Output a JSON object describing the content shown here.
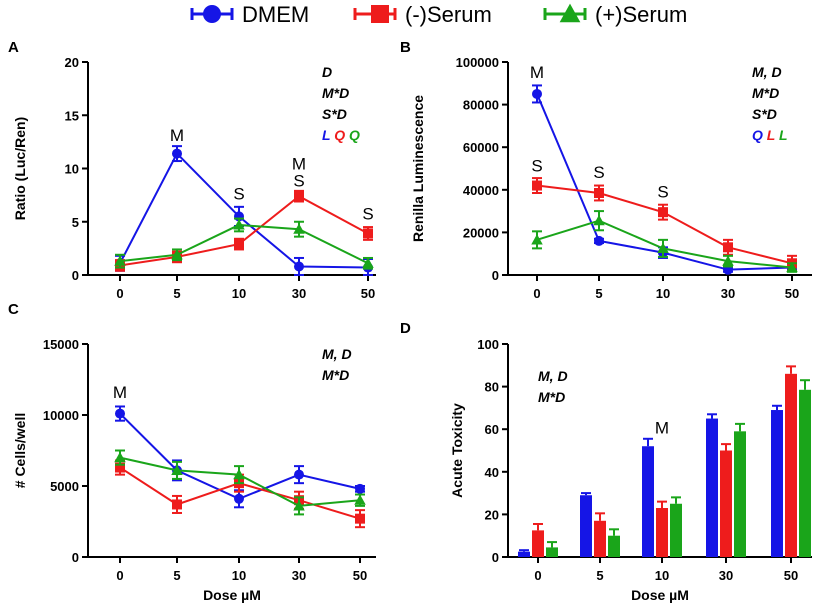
{
  "legend": {
    "entries": [
      {
        "name": "DMEM",
        "color": "#1515e6",
        "marker": "circle"
      },
      {
        "name": "(-)Serum",
        "color": "#ee1c1c",
        "marker": "square"
      },
      {
        "name": "(+)Serum",
        "color": "#1aa51a",
        "marker": "triangle"
      }
    ]
  },
  "colors": {
    "dmem": "#1515e6",
    "minus": "#ee1c1c",
    "plus": "#1aa51a"
  },
  "chart_data": [
    {
      "panel": "A",
      "type": "line",
      "categories": [
        "0",
        "5",
        "10",
        "30",
        "50"
      ],
      "ylabel": "Ratio (Luc/Ren)",
      "xlabel": "",
      "ylim": [
        0,
        20
      ],
      "yticks": [
        "0",
        "5",
        "10",
        "15",
        "20"
      ],
      "series": [
        {
          "name": "DMEM",
          "values": [
            1.1,
            11.4,
            5.5,
            0.8,
            0.7
          ],
          "errors": [
            0.7,
            0.7,
            0.9,
            0.8,
            0.8
          ]
        },
        {
          "name": "(-)Serum",
          "values": [
            0.9,
            1.7,
            2.9,
            7.4,
            3.9
          ],
          "errors": [
            0.5,
            0.5,
            0.5,
            0.5,
            0.6
          ]
        },
        {
          "name": "(+)Serum",
          "values": [
            1.3,
            1.9,
            4.7,
            4.3,
            1.1
          ],
          "errors": [
            0.6,
            0.5,
            0.6,
            0.7,
            0.5
          ]
        }
      ],
      "point_labels": [
        {
          "cat": "5",
          "value": 12.6,
          "text": "M"
        },
        {
          "cat": "10",
          "value": 7.1,
          "text": "S"
        },
        {
          "cat": "30",
          "value": 9.9,
          "text": "M"
        },
        {
          "cat": "30",
          "value": 8.3,
          "text": "S"
        },
        {
          "cat": "50",
          "value": 5.2,
          "text": "S"
        }
      ],
      "stats": [
        [
          {
            "text": "D",
            "color": "#000000"
          }
        ],
        [
          {
            "text": "M*D",
            "color": "#000000"
          }
        ],
        [
          {
            "text": "S*D",
            "color": "#000000"
          }
        ],
        [
          {
            "text": "L",
            "color": "#1515e6"
          },
          {
            "text": "Q",
            "color": "#ee1c1c"
          },
          {
            "text": "Q",
            "color": "#1aa51a"
          }
        ]
      ]
    },
    {
      "panel": "B",
      "type": "line",
      "categories": [
        "0",
        "5",
        "10",
        "30",
        "50"
      ],
      "ylabel": "Renilla Luminescence",
      "xlabel": "",
      "ylim": [
        0,
        100000
      ],
      "yticks": [
        "0",
        "20000",
        "40000",
        "60000",
        "80000",
        "100000"
      ],
      "series": [
        {
          "name": "DMEM",
          "values": [
            85000,
            16000,
            10500,
            2500,
            3500
          ],
          "errors": [
            4000,
            1000,
            2500,
            1000,
            1000
          ]
        },
        {
          "name": "(-)Serum",
          "values": [
            42000,
            38500,
            29500,
            13000,
            5500
          ],
          "errors": [
            3500,
            3500,
            3500,
            3500,
            3500
          ]
        },
        {
          "name": "(+)Serum",
          "values": [
            16500,
            25500,
            12500,
            6500,
            3500
          ],
          "errors": [
            4000,
            4500,
            4000,
            2500,
            2000
          ]
        }
      ],
      "point_labels": [
        {
          "cat": "0",
          "value": 92500,
          "text": "M"
        },
        {
          "cat": "0",
          "value": 48500,
          "text": "S"
        },
        {
          "cat": "5",
          "value": 45500,
          "text": "S"
        },
        {
          "cat": "10",
          "value": 36500,
          "text": "S"
        }
      ],
      "stats": [
        [
          {
            "text": "M, D",
            "color": "#000000"
          }
        ],
        [
          {
            "text": "M*D",
            "color": "#000000"
          }
        ],
        [
          {
            "text": "S*D",
            "color": "#000000"
          }
        ],
        [
          {
            "text": "Q",
            "color": "#1515e6"
          },
          {
            "text": "L",
            "color": "#ee1c1c"
          },
          {
            "text": "L",
            "color": "#1aa51a"
          }
        ]
      ]
    },
    {
      "panel": "C",
      "type": "line",
      "categories": [
        "0",
        "5",
        "10",
        "30",
        "50"
      ],
      "ylabel": "# Cells/well",
      "xlabel": "Dose µM",
      "ylim": [
        0,
        15000
      ],
      "yticks": [
        "0",
        "5000",
        "10000",
        "15000"
      ],
      "series": [
        {
          "name": "DMEM",
          "values": [
            10100,
            6100,
            4100,
            5800,
            4800
          ],
          "errors": [
            500,
            700,
            600,
            600,
            200
          ]
        },
        {
          "name": "(-)Serum",
          "values": [
            6300,
            3700,
            5200,
            4000,
            2700
          ],
          "errors": [
            500,
            600,
            600,
            600,
            600
          ]
        },
        {
          "name": "(+)Serum",
          "values": [
            7000,
            6100,
            5800,
            3600,
            4000
          ],
          "errors": [
            500,
            600,
            600,
            600,
            400
          ]
        }
      ],
      "point_labels": [
        {
          "cat": "0",
          "value": 11200,
          "text": "M"
        }
      ],
      "stats": [
        [
          {
            "text": "M, D",
            "color": "#000000"
          }
        ],
        [
          {
            "text": "M*D",
            "color": "#000000"
          }
        ]
      ]
    },
    {
      "panel": "D",
      "type": "bar",
      "categories": [
        "0",
        "5",
        "10",
        "30",
        "50"
      ],
      "ylabel": "Acute Toxicity",
      "xlabel": "Dose µM",
      "ylim": [
        0,
        100
      ],
      "yticks": [
        "0",
        "20",
        "40",
        "60",
        "80",
        "100"
      ],
      "series": [
        {
          "name": "DMEM",
          "values": [
            2.5,
            29,
            52,
            65,
            69
          ],
          "errors": [
            0.7,
            1,
            3.5,
            2,
            2
          ]
        },
        {
          "name": "(-)Serum",
          "values": [
            12.5,
            17,
            23,
            50,
            86
          ],
          "errors": [
            3,
            3.5,
            3,
            3,
            3.5
          ]
        },
        {
          "name": "(+)Serum",
          "values": [
            4.5,
            10,
            25,
            59,
            78.5
          ],
          "errors": [
            2.5,
            3,
            3,
            3.5,
            4.5
          ]
        }
      ],
      "point_labels": [
        {
          "cat": "10",
          "value": 58,
          "text": "M"
        }
      ],
      "stats": [
        [
          {
            "text": "M, D",
            "color": "#000000"
          }
        ],
        [
          {
            "text": "M*D",
            "color": "#000000"
          }
        ]
      ]
    }
  ]
}
